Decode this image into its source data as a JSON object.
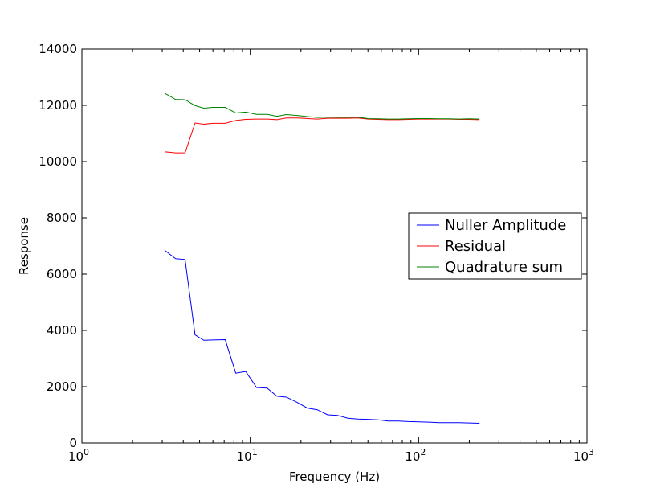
{
  "chart_data": {
    "type": "line",
    "title": "",
    "xlabel": "Frequency (Hz)",
    "ylabel": "Response",
    "xscale": "log",
    "xlim": [
      1,
      1000
    ],
    "ylim": [
      0,
      14000
    ],
    "grid": false,
    "legend_position": "center-right",
    "x_ticks": [
      {
        "value": 1,
        "base": "10",
        "exp": "0"
      },
      {
        "value": 10,
        "base": "10",
        "exp": "1"
      },
      {
        "value": 100,
        "base": "10",
        "exp": "2"
      },
      {
        "value": 1000,
        "base": "10",
        "exp": "3"
      }
    ],
    "y_ticks": [
      0,
      2000,
      4000,
      6000,
      8000,
      10000,
      12000,
      14000
    ],
    "x": [
      3.1,
      3.6,
      4.1,
      4.7,
      5.3,
      6.0,
      7.1,
      8.2,
      9.4,
      10.9,
      12.6,
      14.4,
      16.4,
      19.0,
      21.8,
      25.0,
      28.8,
      33.0,
      38.0,
      43.6,
      50.1,
      57.6,
      66.1,
      75.9,
      87.1,
      100.0,
      115.0,
      132.0,
      152.0,
      174.0,
      200.0,
      230.0
    ],
    "series": [
      {
        "name": "Nuller Amplitude",
        "color": "#0000ff",
        "values": [
          6850,
          6550,
          6520,
          3840,
          3650,
          3660,
          3670,
          2480,
          2540,
          1970,
          1950,
          1660,
          1630,
          1440,
          1240,
          1180,
          1000,
          980,
          880,
          850,
          840,
          820,
          780,
          780,
          760,
          750,
          740,
          720,
          720,
          720,
          710,
          700
        ]
      },
      {
        "name": "Residual",
        "color": "#ff0000",
        "values": [
          10350,
          10310,
          10310,
          11370,
          11330,
          11360,
          11360,
          11460,
          11500,
          11510,
          11510,
          11490,
          11550,
          11550,
          11530,
          11510,
          11540,
          11540,
          11540,
          11550,
          11510,
          11500,
          11490,
          11490,
          11500,
          11510,
          11510,
          11510,
          11510,
          11500,
          11500,
          11490
        ]
      },
      {
        "name": "Quadrature sum",
        "color": "#008000",
        "values": [
          12430,
          12210,
          12200,
          11990,
          11900,
          11930,
          11930,
          11730,
          11760,
          11680,
          11680,
          11610,
          11670,
          11640,
          11600,
          11570,
          11580,
          11570,
          11570,
          11580,
          11530,
          11520,
          11510,
          11510,
          11520,
          11530,
          11530,
          11520,
          11520,
          11510,
          11520,
          11510
        ]
      }
    ]
  }
}
